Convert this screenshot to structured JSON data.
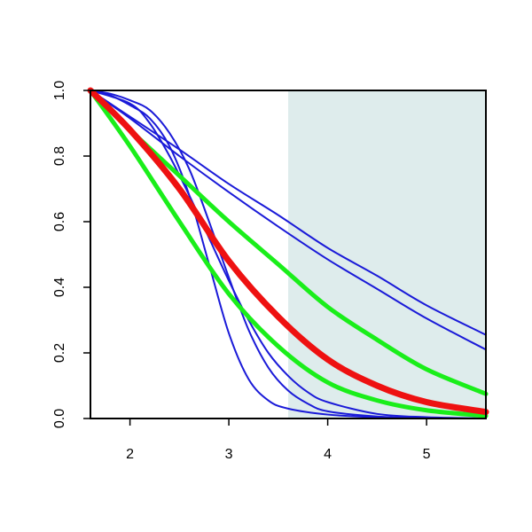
{
  "chart_data": {
    "type": "line",
    "title": "",
    "xlabel": "",
    "ylabel": "",
    "xlim": [
      1.6,
      5.6
    ],
    "ylim": [
      0,
      1
    ],
    "x_ticks": [
      2,
      3,
      4,
      5
    ],
    "x_tick_labels": [
      "2",
      "3",
      "4",
      "5"
    ],
    "y_ticks": [
      0,
      0.2,
      0.4,
      0.6,
      0.8,
      1.0
    ],
    "y_tick_labels": [
      "0.0",
      "0.2",
      "0.4",
      "0.6",
      "0.8",
      "1.0"
    ],
    "shaded_region": {
      "x_from": 3.6,
      "x_to": 5.6,
      "color": "#deecec"
    },
    "grid": false,
    "legend": "none",
    "series": [
      {
        "color": "#1a1ad8",
        "line_weight": "thin",
        "points": [
          [
            1.6,
            1.0
          ],
          [
            2.0,
            0.92
          ],
          [
            2.5,
            0.82
          ],
          [
            3.0,
            0.715
          ],
          [
            3.5,
            0.62
          ],
          [
            4.0,
            0.52
          ],
          [
            4.5,
            0.435
          ],
          [
            5.0,
            0.345
          ],
          [
            5.6,
            0.255
          ]
        ]
      },
      {
        "color": "#1a1ad8",
        "line_weight": "thin",
        "points": [
          [
            1.6,
            1.0
          ],
          [
            2.0,
            0.915
          ],
          [
            2.5,
            0.8
          ],
          [
            3.0,
            0.69
          ],
          [
            3.5,
            0.585
          ],
          [
            4.0,
            0.485
          ],
          [
            4.5,
            0.395
          ],
          [
            5.0,
            0.305
          ],
          [
            5.6,
            0.21
          ]
        ]
      },
      {
        "color": "#1a1ad8",
        "line_weight": "thin",
        "points": [
          [
            1.6,
            1.0
          ],
          [
            1.8,
            0.985
          ],
          [
            2.0,
            0.955
          ],
          [
            2.2,
            0.915
          ],
          [
            2.4,
            0.83
          ],
          [
            2.6,
            0.68
          ],
          [
            2.8,
            0.47
          ],
          [
            3.0,
            0.26
          ],
          [
            3.2,
            0.12
          ],
          [
            3.4,
            0.055
          ],
          [
            3.6,
            0.03
          ],
          [
            4.0,
            0.012
          ],
          [
            4.5,
            0.004
          ],
          [
            5.0,
            0.001
          ],
          [
            5.6,
            0.0
          ]
        ]
      },
      {
        "color": "#1a1ad8",
        "line_weight": "thin",
        "points": [
          [
            1.6,
            1.0
          ],
          [
            1.8,
            0.99
          ],
          [
            2.0,
            0.97
          ],
          [
            2.2,
            0.94
          ],
          [
            2.4,
            0.87
          ],
          [
            2.6,
            0.76
          ],
          [
            2.8,
            0.6
          ],
          [
            3.0,
            0.43
          ],
          [
            3.2,
            0.27
          ],
          [
            3.4,
            0.155
          ],
          [
            3.6,
            0.085
          ],
          [
            3.8,
            0.045
          ],
          [
            4.0,
            0.022
          ],
          [
            4.5,
            0.006
          ],
          [
            5.0,
            0.001
          ],
          [
            5.6,
            0.0
          ]
        ]
      },
      {
        "color": "#1a1ad8",
        "line_weight": "thin",
        "points": [
          [
            1.6,
            1.0
          ],
          [
            2.0,
            0.96
          ],
          [
            2.2,
            0.9
          ],
          [
            2.4,
            0.8
          ],
          [
            2.6,
            0.68
          ],
          [
            2.8,
            0.55
          ],
          [
            3.0,
            0.42
          ],
          [
            3.2,
            0.3
          ],
          [
            3.4,
            0.2
          ],
          [
            3.6,
            0.13
          ],
          [
            3.8,
            0.08
          ],
          [
            4.0,
            0.05
          ],
          [
            4.5,
            0.014
          ],
          [
            5.0,
            0.004
          ],
          [
            5.6,
            0.0
          ]
        ]
      },
      {
        "color": "#1aee1a",
        "line_weight": "thick",
        "points": [
          [
            1.6,
            1.0
          ],
          [
            2.0,
            0.88
          ],
          [
            2.5,
            0.74
          ],
          [
            3.0,
            0.6
          ],
          [
            3.5,
            0.47
          ],
          [
            4.0,
            0.34
          ],
          [
            4.5,
            0.24
          ],
          [
            5.0,
            0.15
          ],
          [
            5.6,
            0.075
          ]
        ]
      },
      {
        "color": "#1aee1a",
        "line_weight": "thick",
        "points": [
          [
            1.6,
            1.0
          ],
          [
            2.0,
            0.83
          ],
          [
            2.5,
            0.6
          ],
          [
            3.0,
            0.38
          ],
          [
            3.5,
            0.22
          ],
          [
            4.0,
            0.11
          ],
          [
            4.5,
            0.055
          ],
          [
            5.0,
            0.025
          ],
          [
            5.6,
            0.008
          ]
        ]
      },
      {
        "color": "#ee1111",
        "line_weight": "thicker",
        "points": [
          [
            1.6,
            1.0
          ],
          [
            2.0,
            0.88
          ],
          [
            2.5,
            0.7
          ],
          [
            3.0,
            0.48
          ],
          [
            3.5,
            0.31
          ],
          [
            4.0,
            0.18
          ],
          [
            4.5,
            0.1
          ],
          [
            5.0,
            0.05
          ],
          [
            5.6,
            0.02
          ]
        ]
      }
    ]
  }
}
